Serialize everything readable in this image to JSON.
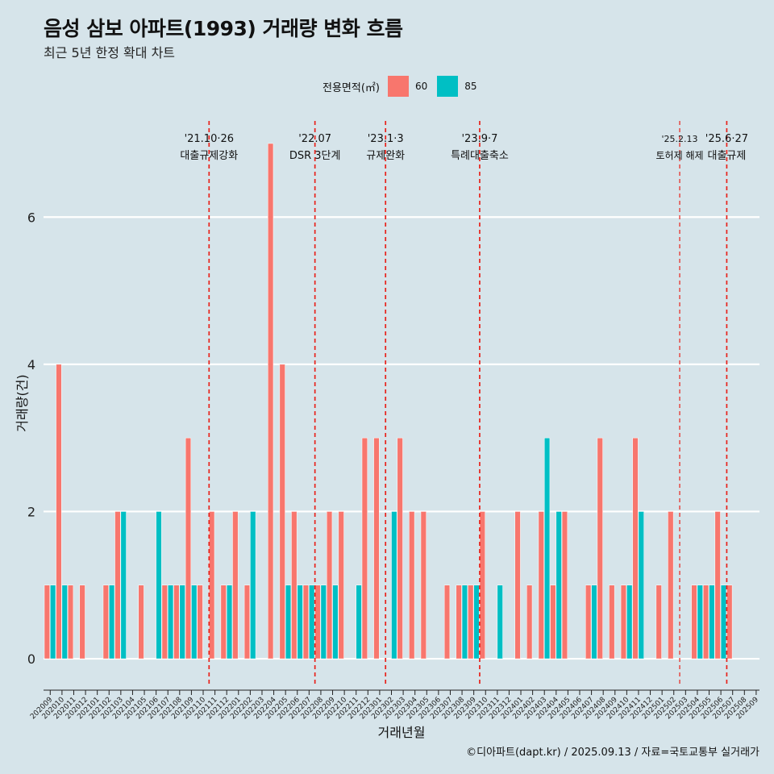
{
  "header": {
    "title": "음성 삼보 아파트(1993) 거래량 변화 흐름",
    "subtitle": "최근 5년 한정 확대 차트"
  },
  "legend": {
    "title": "전용면적(㎡)",
    "items": [
      {
        "label": "60",
        "color": "#F8766D"
      },
      {
        "label": "85",
        "color": "#00BFC4"
      }
    ]
  },
  "caption": "©디아파트(dapt.kr) / 2025.09.13 / 자료=국토교통부 실거래가",
  "chart_data": {
    "type": "bar",
    "xlabel": "거래년월",
    "ylabel": "거래량(건)",
    "ylim": [
      -0.35,
      7.35
    ],
    "yticks": [
      0,
      2,
      4,
      6
    ],
    "grid": true,
    "legend_position": "top",
    "categories": [
      "202009",
      "202010",
      "202011",
      "202012",
      "202101",
      "202102",
      "202103",
      "202104",
      "202105",
      "202106",
      "202107",
      "202108",
      "202109",
      "202110",
      "202111",
      "202112",
      "202201",
      "202202",
      "202203",
      "202204",
      "202205",
      "202206",
      "202207",
      "202208",
      "202209",
      "202210",
      "202211",
      "202212",
      "202301",
      "202302",
      "202303",
      "202304",
      "202305",
      "202306",
      "202307",
      "202308",
      "202309",
      "202310",
      "202311",
      "202312",
      "202401",
      "202402",
      "202403",
      "202404",
      "202405",
      "202406",
      "202407",
      "202408",
      "202409",
      "202410",
      "202411",
      "202412",
      "202501",
      "202502",
      "202503",
      "202504",
      "202505",
      "202506",
      "202507",
      "202508",
      "202509"
    ],
    "series": [
      {
        "name": "60",
        "color": "#F8766D",
        "values": [
          1,
          4,
          1,
          1,
          0,
          1,
          2,
          0,
          1,
          0,
          1,
          1,
          3,
          1,
          2,
          1,
          2,
          1,
          0,
          7,
          4,
          2,
          1,
          1,
          2,
          2,
          0,
          3,
          3,
          0,
          3,
          2,
          2,
          0,
          1,
          1,
          1,
          2,
          0,
          0,
          2,
          1,
          2,
          1,
          2,
          0,
          1,
          3,
          1,
          1,
          3,
          0,
          1,
          2,
          0,
          1,
          1,
          2,
          1,
          0,
          0
        ]
      },
      {
        "name": "85",
        "color": "#00BFC4",
        "values": [
          1,
          1,
          0,
          0,
          0,
          1,
          2,
          0,
          0,
          2,
          1,
          1,
          1,
          0,
          0,
          1,
          0,
          2,
          0,
          0,
          1,
          1,
          1,
          1,
          1,
          0,
          1,
          0,
          0,
          2,
          0,
          0,
          0,
          0,
          0,
          1,
          1,
          0,
          1,
          0,
          0,
          0,
          3,
          2,
          0,
          0,
          1,
          0,
          0,
          1,
          2,
          0,
          0,
          0,
          0,
          1,
          1,
          1,
          0,
          0,
          0
        ]
      }
    ],
    "annotations": [
      {
        "after": "202110",
        "date": "'21.10·26",
        "label": "대출규제강화"
      },
      {
        "after": "202207",
        "date": "'22.07",
        "label": "DSR 3단계"
      },
      {
        "after": "202301",
        "date": "'23.1·3",
        "label": "규제완화"
      },
      {
        "after": "202309",
        "date": "'23.9·7",
        "label": "특례대출축소"
      },
      {
        "after": "202502",
        "date": "'25.2.13",
        "label": "토허제 해제"
      },
      {
        "after": "202506",
        "date": "'25.6·27",
        "label": "대출규제"
      }
    ]
  }
}
